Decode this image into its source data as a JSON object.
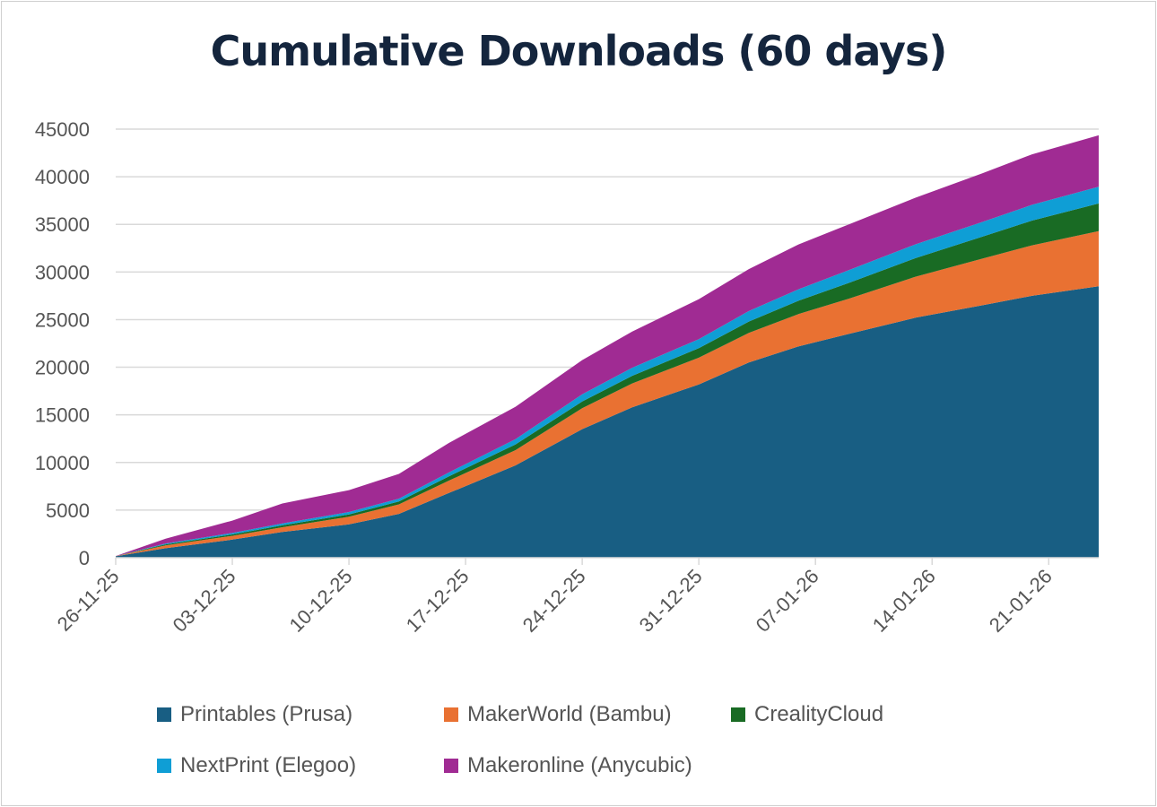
{
  "chart_data": {
    "type": "area",
    "stacked": true,
    "title": "Cumulative Downloads (60 days)",
    "xlabel": "",
    "ylabel": "",
    "ylim": [
      0,
      45000
    ],
    "yticks": [
      0,
      5000,
      10000,
      15000,
      20000,
      25000,
      30000,
      35000,
      40000,
      45000
    ],
    "x_tick_labels": [
      "26-11-25",
      "03-12-25",
      "10-12-25",
      "17-12-25",
      "24-12-25",
      "31-12-25",
      "07-01-26",
      "14-01-26",
      "21-01-26"
    ],
    "x_tick_day_index": [
      0,
      7,
      14,
      21,
      28,
      35,
      42,
      49,
      56
    ],
    "grid": true,
    "legend_position": "bottom",
    "x_day_index": [
      0,
      3,
      7,
      10,
      14,
      17,
      20,
      24,
      28,
      31,
      35,
      38,
      41,
      44,
      48,
      52,
      55,
      59
    ],
    "series": [
      {
        "name": "Printables (Prusa)",
        "color": "#185e83",
        "values": [
          150,
          1000,
          1900,
          2700,
          3500,
          4600,
          6800,
          9700,
          13500,
          15800,
          18200,
          20500,
          22200,
          23500,
          25200,
          26500,
          27500,
          28500
        ]
      },
      {
        "name": "MakerWorld (Bambu)",
        "color": "#e97132",
        "values": [
          10,
          300,
          400,
          500,
          800,
          1000,
          1300,
          1600,
          2200,
          2500,
          2800,
          3100,
          3400,
          3700,
          4300,
          4900,
          5300,
          5800
        ]
      },
      {
        "name": "CrealityCloud",
        "color": "#196b24",
        "values": [
          5,
          100,
          150,
          200,
          250,
          300,
          450,
          600,
          700,
          800,
          1000,
          1200,
          1400,
          1650,
          1950,
          2300,
          2600,
          2900
        ]
      },
      {
        "name": "NextPrint (Elegoo)",
        "color": "#0f9ed5",
        "values": [
          5,
          100,
          150,
          200,
          250,
          300,
          400,
          550,
          750,
          850,
          950,
          1100,
          1200,
          1350,
          1450,
          1550,
          1650,
          1750
        ]
      },
      {
        "name": "Makeronline (Anycubic)",
        "color": "#a02b93",
        "values": [
          10,
          500,
          1300,
          2100,
          2300,
          2600,
          3100,
          3400,
          3600,
          3800,
          4200,
          4400,
          4700,
          4800,
          4900,
          5100,
          5300,
          5400
        ]
      }
    ]
  }
}
